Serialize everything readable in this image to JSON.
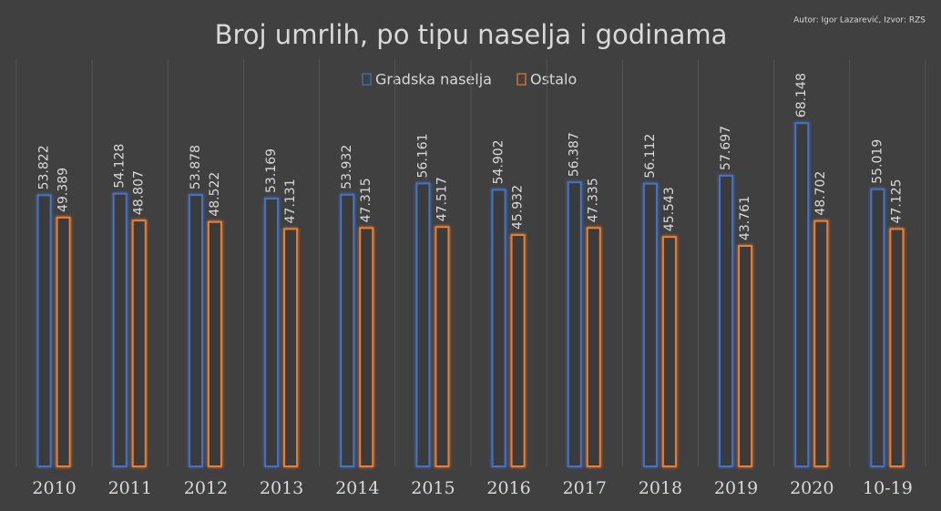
{
  "chart_data": {
    "type": "bar",
    "title": "Broj umrlih, po tipu naselja i godinama",
    "source": "Autor: Igor Lazarević, Izvor: RZS",
    "categories": [
      "2010",
      "2011",
      "2012",
      "2013",
      "2014",
      "2015",
      "2016",
      "2017",
      "2018",
      "2019",
      "2020",
      "10-19"
    ],
    "series": [
      {
        "name": "Gradska naselja",
        "color": "#4472c4",
        "values": [
          53.822,
          54.128,
          53.878,
          53.169,
          53.932,
          56.161,
          54.902,
          56.387,
          56.112,
          57.697,
          68.148,
          55.019
        ]
      },
      {
        "name": "Ostalo",
        "color": "#ed7d31",
        "values": [
          49.389,
          48.807,
          48.522,
          47.131,
          47.315,
          47.517,
          45.932,
          47.335,
          45.543,
          43.761,
          48.702,
          47.125
        ]
      }
    ]
  }
}
